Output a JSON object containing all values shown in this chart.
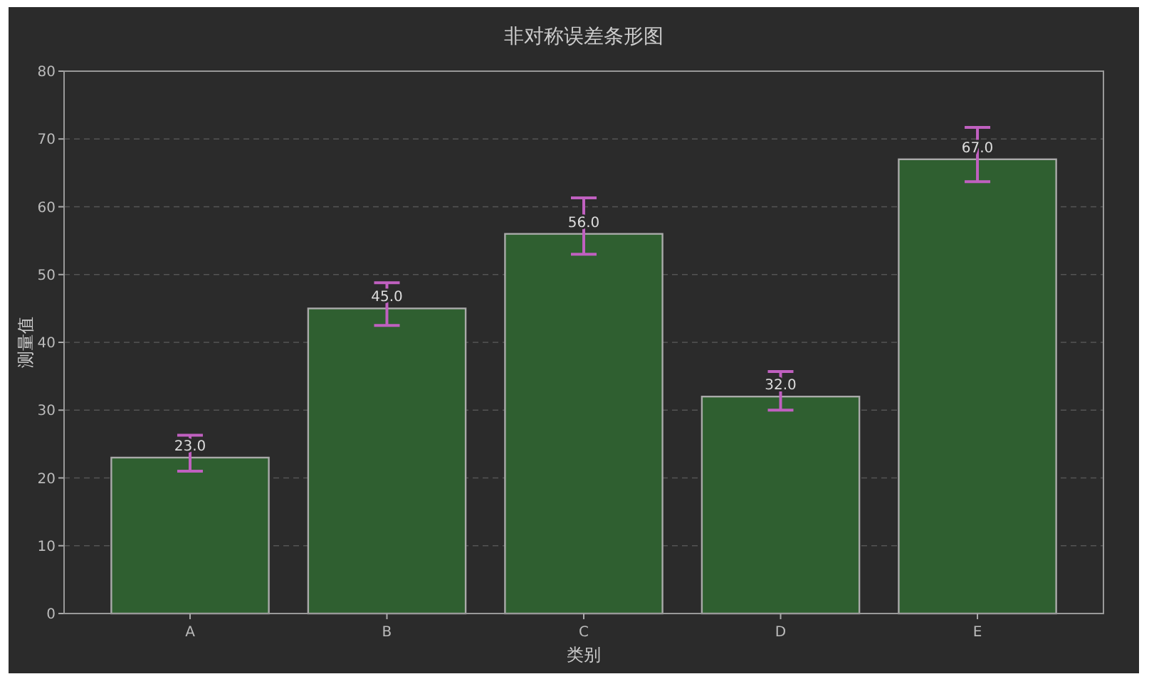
{
  "chart_data": {
    "type": "bar",
    "title": "非对称误差条形图",
    "xlabel": "类别",
    "ylabel": "测量值",
    "categories": [
      "A",
      "B",
      "C",
      "D",
      "E"
    ],
    "values": [
      23,
      45,
      56,
      32,
      67
    ],
    "value_labels": [
      "23.0",
      "45.0",
      "56.0",
      "32.0",
      "67.0"
    ],
    "errors": [
      [
        21,
        26.3
      ],
      [
        42.5,
        48.8
      ],
      [
        53,
        61.3
      ],
      [
        30,
        35.7
      ],
      [
        63.7,
        71.7
      ]
    ],
    "color": "#2f5f30",
    "ylim": [
      0,
      80
    ],
    "yticks": [
      0,
      10,
      20,
      30,
      40,
      50,
      60,
      70,
      80
    ],
    "grid": "y"
  }
}
